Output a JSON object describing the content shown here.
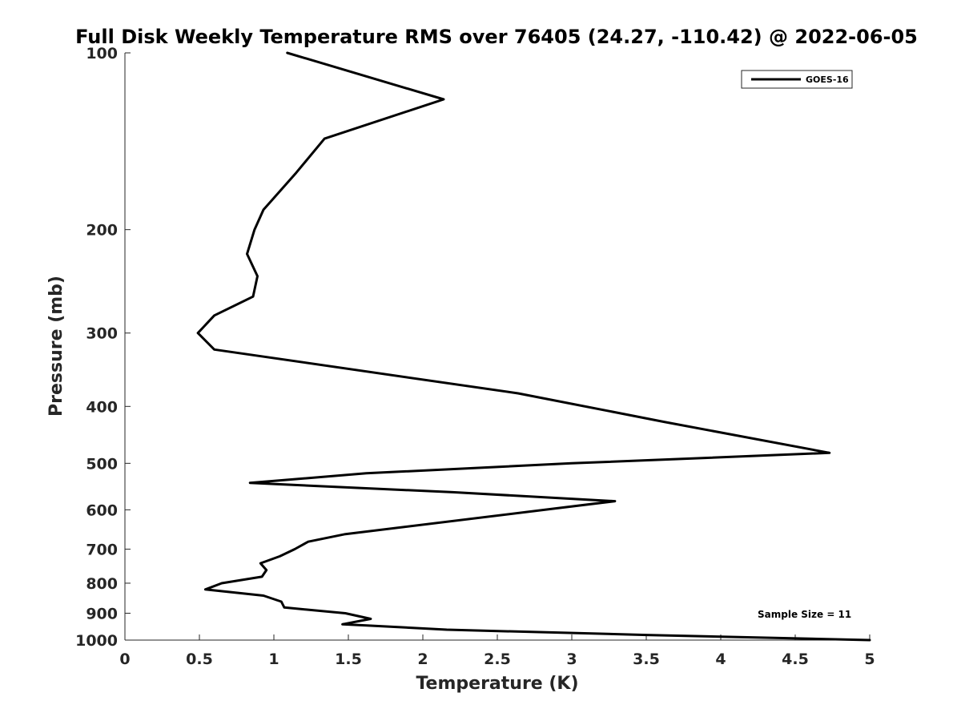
{
  "chart_data": {
    "type": "line",
    "title": "Full Disk Weekly Temperature RMS over 76405 (24.27, -110.42) @ 2022-06-05",
    "xlabel": "Temperature (K)",
    "ylabel": "Pressure (mb)",
    "xlim": [
      0,
      5
    ],
    "ylim": [
      100,
      1000
    ],
    "yscale": "log",
    "y_reversed": true,
    "x_ticks": [
      0,
      0.5,
      1,
      1.5,
      2,
      2.5,
      3,
      3.5,
      4,
      4.5,
      5
    ],
    "x_tick_labels": [
      "0",
      "0.5",
      "1",
      "1.5",
      "2",
      "2.5",
      "3",
      "3.5",
      "4",
      "4.5",
      "5"
    ],
    "y_ticks": [
      100,
      200,
      300,
      400,
      500,
      600,
      700,
      800,
      900,
      1000
    ],
    "y_tick_labels": [
      "100",
      "200",
      "300",
      "400",
      "500",
      "600",
      "700",
      "800",
      "900",
      "1000"
    ],
    "legend": {
      "position": "top-right",
      "entries": [
        "GOES-16"
      ]
    },
    "annotation": "Sample Size = 11",
    "series": [
      {
        "name": "GOES-16",
        "color": "#000000",
        "points": [
          {
            "x": 1.09,
            "p": 100
          },
          {
            "x": 2.14,
            "p": 120
          },
          {
            "x": 1.34,
            "p": 140
          },
          {
            "x": 1.15,
            "p": 160
          },
          {
            "x": 0.93,
            "p": 185
          },
          {
            "x": 0.87,
            "p": 200
          },
          {
            "x": 0.82,
            "p": 220
          },
          {
            "x": 0.89,
            "p": 240
          },
          {
            "x": 0.86,
            "p": 260
          },
          {
            "x": 0.6,
            "p": 280
          },
          {
            "x": 0.49,
            "p": 300
          },
          {
            "x": 0.6,
            "p": 320
          },
          {
            "x": 2.64,
            "p": 380
          },
          {
            "x": 3.62,
            "p": 425
          },
          {
            "x": 4.73,
            "p": 480
          },
          {
            "x": 3.0,
            "p": 500
          },
          {
            "x": 1.62,
            "p": 520
          },
          {
            "x": 0.84,
            "p": 540
          },
          {
            "x": 2.2,
            "p": 560
          },
          {
            "x": 3.29,
            "p": 580
          },
          {
            "x": 1.48,
            "p": 660
          },
          {
            "x": 1.23,
            "p": 680
          },
          {
            "x": 1.14,
            "p": 700
          },
          {
            "x": 1.04,
            "p": 720
          },
          {
            "x": 0.91,
            "p": 740
          },
          {
            "x": 0.95,
            "p": 760
          },
          {
            "x": 0.92,
            "p": 780
          },
          {
            "x": 0.65,
            "p": 800
          },
          {
            "x": 0.54,
            "p": 820
          },
          {
            "x": 0.93,
            "p": 840
          },
          {
            "x": 1.05,
            "p": 860
          },
          {
            "x": 1.07,
            "p": 880
          },
          {
            "x": 1.48,
            "p": 900
          },
          {
            "x": 1.65,
            "p": 920
          },
          {
            "x": 1.46,
            "p": 940
          },
          {
            "x": 1.65,
            "p": 945
          },
          {
            "x": 2.16,
            "p": 960
          },
          {
            "x": 3.5,
            "p": 980
          },
          {
            "x": 5.0,
            "p": 1000
          }
        ]
      }
    ]
  }
}
